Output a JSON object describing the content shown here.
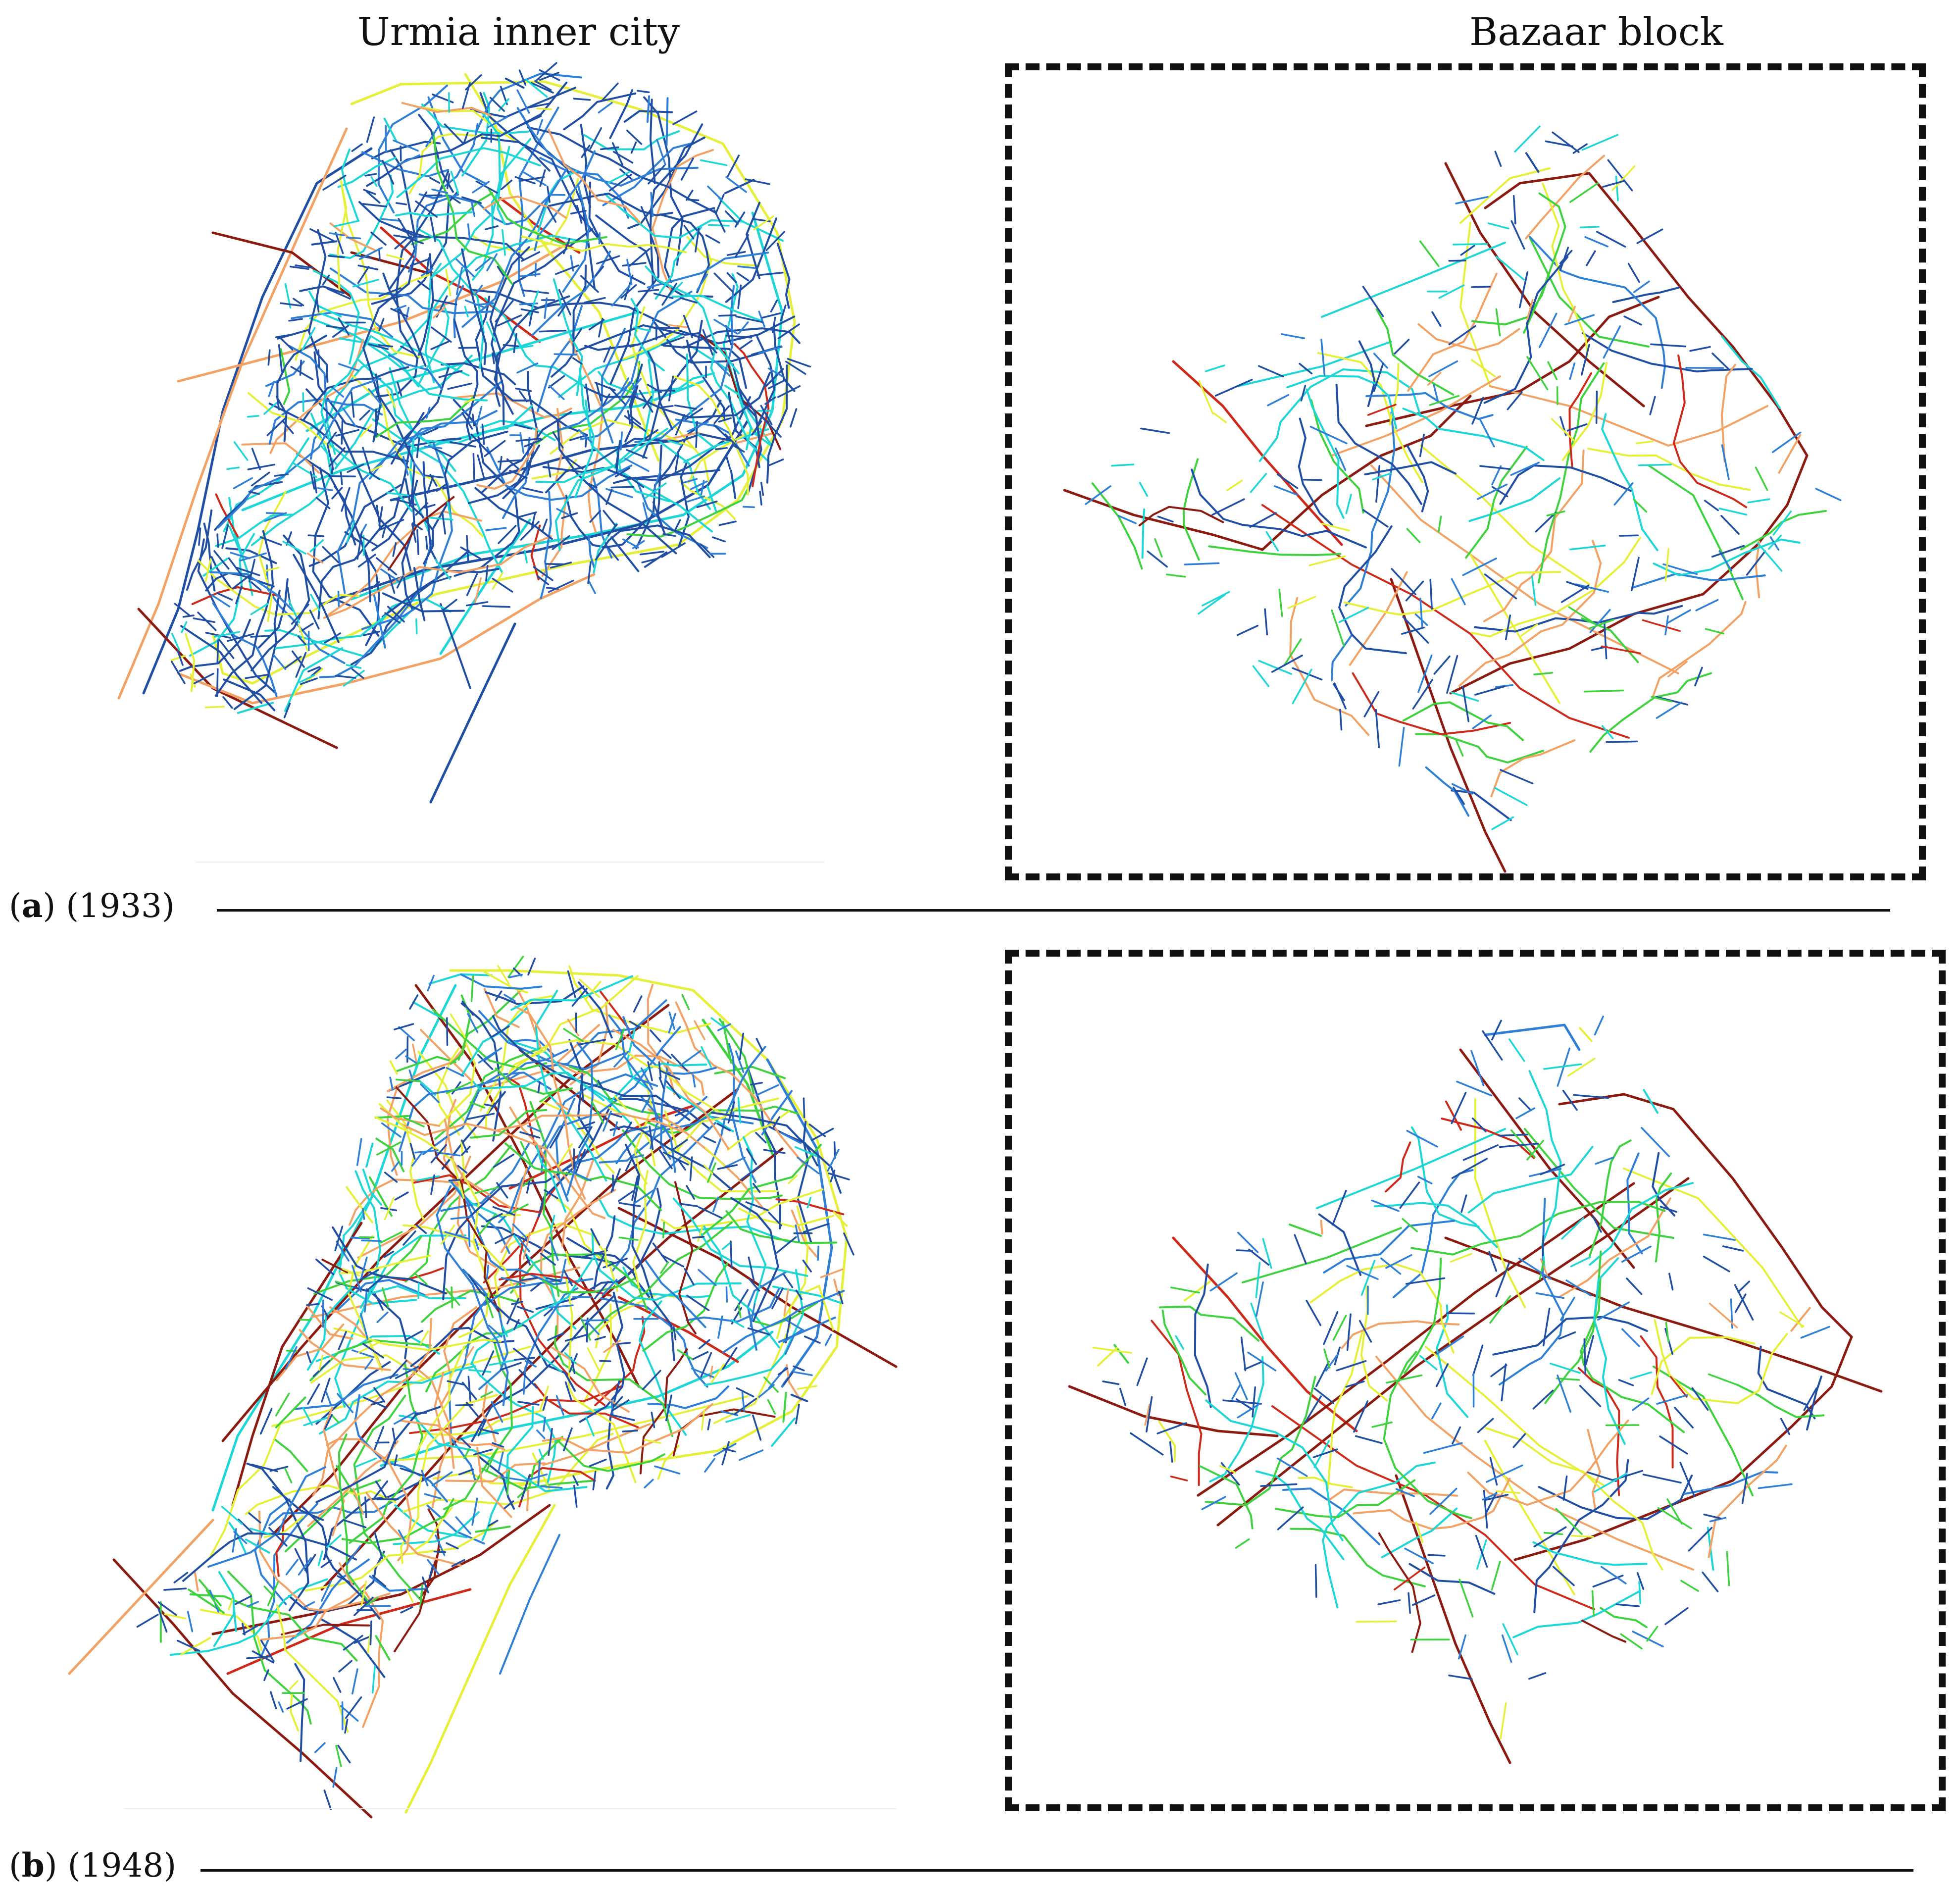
{
  "figure": {
    "column_titles": {
      "left": "Urmia inner city",
      "right": "Bazaar block"
    },
    "panels": [
      {
        "letter": "a",
        "prefix": "(",
        "suffix": ") (1933)"
      },
      {
        "letter": "b",
        "prefix": "(",
        "suffix": ") (1948)"
      }
    ]
  },
  "palette": {
    "dark_blue": "#1f4ea3",
    "blue": "#2f7fd6",
    "cyan": "#1fd6d6",
    "green": "#3fd23f",
    "yellow": "#e6f03a",
    "orange": "#f2a265",
    "red": "#cc2a1a",
    "dark_red": "#8b1a10"
  }
}
